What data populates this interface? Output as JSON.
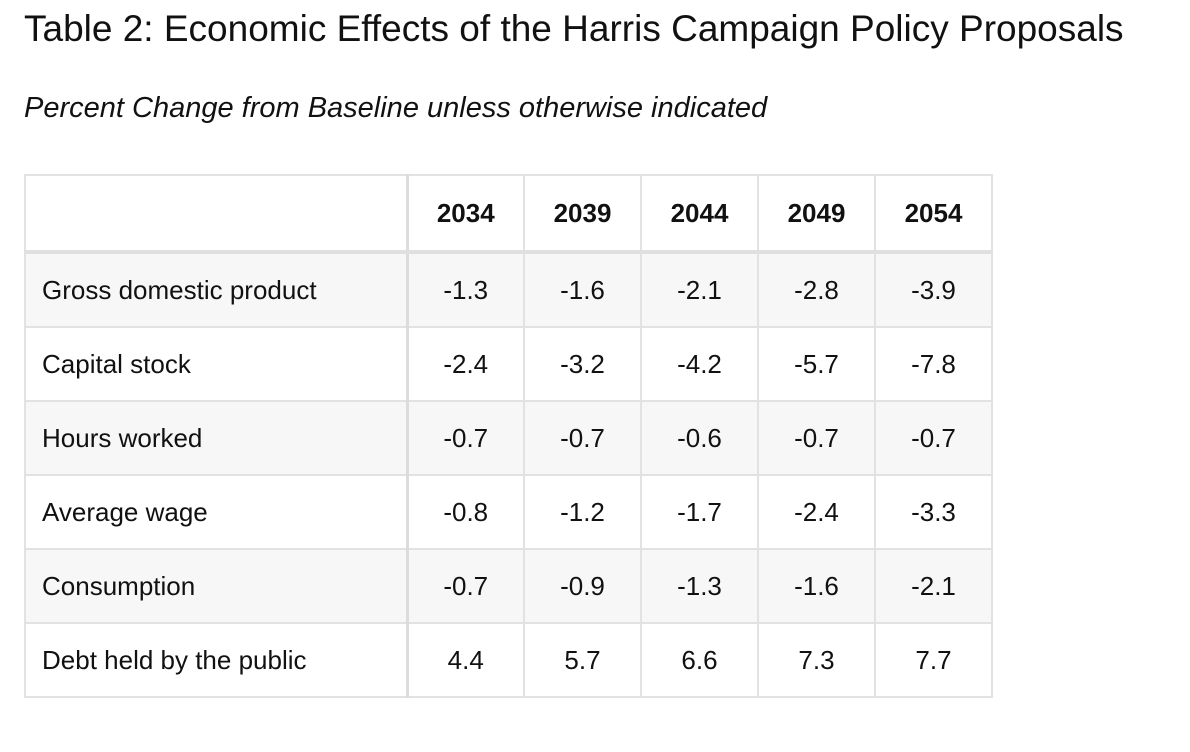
{
  "title": "Table 2: Economic Effects of the Harris Campaign Policy Proposals",
  "subtitle": "Percent Change from Baseline unless otherwise indicated",
  "table": {
    "corner": "",
    "years": [
      "2034",
      "2039",
      "2044",
      "2049",
      "2054"
    ],
    "rows": [
      {
        "label": "Gross domestic product",
        "values": [
          "-1.3",
          "-1.6",
          "-2.1",
          "-2.8",
          "-3.9"
        ]
      },
      {
        "label": "Capital stock",
        "values": [
          "-2.4",
          "-3.2",
          "-4.2",
          "-5.7",
          "-7.8"
        ]
      },
      {
        "label": "Hours worked",
        "values": [
          "-0.7",
          "-0.7",
          "-0.6",
          "-0.7",
          "-0.7"
        ]
      },
      {
        "label": "Average wage",
        "values": [
          "-0.8",
          "-1.2",
          "-1.7",
          "-2.4",
          "-3.3"
        ]
      },
      {
        "label": "Consumption",
        "values": [
          "-0.7",
          "-0.9",
          "-1.3",
          "-1.6",
          "-2.1"
        ]
      },
      {
        "label": "Debt held by the public",
        "values": [
          "4.4",
          "5.7",
          "6.6",
          "7.3",
          "7.7"
        ]
      }
    ]
  }
}
